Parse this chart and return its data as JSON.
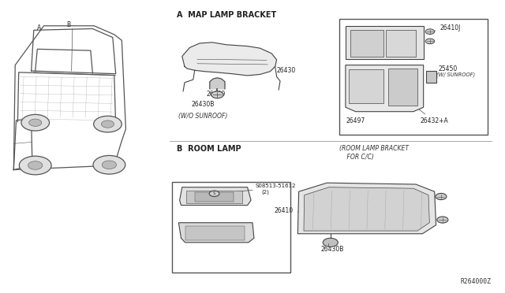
{
  "background_color": "#ffffff",
  "fig_width": 6.4,
  "fig_height": 3.72,
  "dpi": 100,
  "diagram_ref": "R264000Z",
  "section_a_label": "A  MAP LAMP BRACKET",
  "section_b_label": "B  ROOM LAMP",
  "wo_sunroof_label": "(W/O SUNROOF)",
  "w_sunroof_label": "(W/ SUNROOF)",
  "room_lamp_bracket_label": "(ROOM LAMP BRACKET\n    FOR C/C)"
}
